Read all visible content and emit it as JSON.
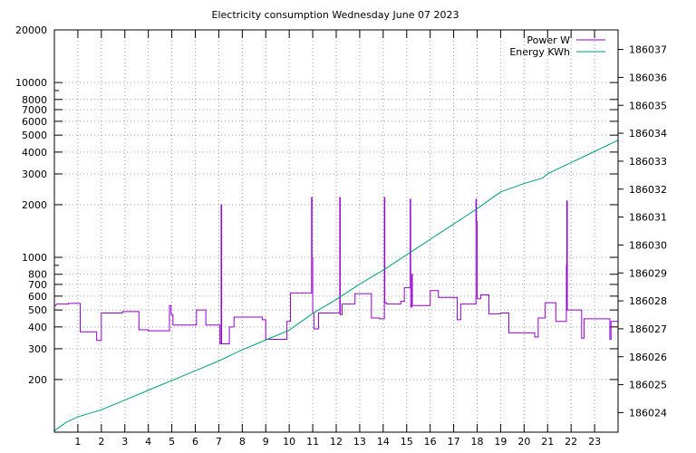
{
  "chart_data": {
    "type": "line",
    "title": "Electricity consumption Wednesday June 07 2023",
    "xlabel": "",
    "ylabel": "",
    "y2label": "",
    "x_ticks": [
      "1",
      "2",
      "3",
      "4",
      "5",
      "6",
      "7",
      "8",
      "9",
      "10",
      "11",
      "12",
      "13",
      "14",
      "15",
      "16",
      "17",
      "18",
      "19",
      "20",
      "21",
      "22",
      "23"
    ],
    "xlim": [
      0,
      24
    ],
    "y_scale": "log",
    "ylim": [
      100,
      20000
    ],
    "y_ticks": [
      {
        "v": 200,
        "t": "200"
      },
      {
        "v": 300,
        "t": "300"
      },
      {
        "v": 400,
        "t": "400"
      },
      {
        "v": 500,
        "t": "500"
      },
      {
        "v": 600,
        "t": "600"
      },
      {
        "v": 700,
        "t": "700"
      },
      {
        "v": 800,
        "t": "800"
      },
      {
        "v": 1000,
        "t": "1000"
      },
      {
        "v": 2000,
        "t": "2000"
      },
      {
        "v": 3000,
        "t": "3000"
      },
      {
        "v": 4000,
        "t": "4000"
      },
      {
        "v": 5000,
        "t": "5000"
      },
      {
        "v": 6000,
        "t": "6000"
      },
      {
        "v": 7000,
        "t": "7000"
      },
      {
        "v": 8000,
        "t": "8000"
      },
      {
        "v": 10000,
        "t": "10000"
      },
      {
        "v": 20000,
        "t": "20000"
      }
    ],
    "y2lim": [
      186023.3,
      186037.7
    ],
    "y2_ticks": [
      "186024",
      "186025",
      "186026",
      "186027",
      "186028",
      "186029",
      "186030",
      "186031",
      "186032",
      "186033",
      "186034",
      "186035",
      "186036",
      "186037"
    ],
    "grid": true,
    "legend_position": "top-right",
    "series": [
      {
        "name": "Power W",
        "color": "#9400d3",
        "axis": "left",
        "points": [
          [
            0.0,
            400
          ],
          [
            0.0,
            530
          ],
          [
            0.05,
            530
          ],
          [
            0.1,
            540
          ],
          [
            0.6,
            540
          ],
          [
            0.6,
            545
          ],
          [
            1.1,
            545
          ],
          [
            1.1,
            375
          ],
          [
            1.8,
            375
          ],
          [
            1.8,
            335
          ],
          [
            2.0,
            335
          ],
          [
            2.0,
            480
          ],
          [
            2.9,
            480
          ],
          [
            2.9,
            490
          ],
          [
            3.6,
            490
          ],
          [
            3.6,
            385
          ],
          [
            4.0,
            385
          ],
          [
            4.0,
            380
          ],
          [
            4.9,
            380
          ],
          [
            4.9,
            530
          ],
          [
            4.97,
            530
          ],
          [
            4.97,
            470
          ],
          [
            5.05,
            470
          ],
          [
            5.05,
            410
          ],
          [
            6.05,
            410
          ],
          [
            6.05,
            500
          ],
          [
            6.45,
            500
          ],
          [
            6.45,
            410
          ],
          [
            7.05,
            410
          ],
          [
            7.05,
            320
          ],
          [
            7.1,
            320
          ],
          [
            7.1,
            2000
          ],
          [
            7.12,
            2000
          ],
          [
            7.12,
            320
          ],
          [
            7.45,
            320
          ],
          [
            7.45,
            400
          ],
          [
            7.65,
            400
          ],
          [
            7.65,
            455
          ],
          [
            8.85,
            455
          ],
          [
            8.85,
            440
          ],
          [
            9.0,
            440
          ],
          [
            9.0,
            340
          ],
          [
            9.9,
            340
          ],
          [
            9.9,
            430
          ],
          [
            10.05,
            430
          ],
          [
            10.05,
            625
          ],
          [
            10.95,
            625
          ],
          [
            10.95,
            2200
          ],
          [
            10.97,
            2200
          ],
          [
            10.97,
            1000
          ],
          [
            11.0,
            1000
          ],
          [
            11.0,
            480
          ],
          [
            11.05,
            480
          ],
          [
            11.05,
            390
          ],
          [
            11.25,
            390
          ],
          [
            11.25,
            480
          ],
          [
            12.15,
            480
          ],
          [
            12.15,
            2200
          ],
          [
            12.17,
            2200
          ],
          [
            12.17,
            470
          ],
          [
            12.25,
            470
          ],
          [
            12.25,
            540
          ],
          [
            12.8,
            540
          ],
          [
            12.8,
            620
          ],
          [
            13.5,
            620
          ],
          [
            13.5,
            450
          ],
          [
            13.85,
            450
          ],
          [
            13.85,
            445
          ],
          [
            14.05,
            445
          ],
          [
            14.05,
            2200
          ],
          [
            14.07,
            2200
          ],
          [
            14.07,
            550
          ],
          [
            14.15,
            550
          ],
          [
            14.15,
            540
          ],
          [
            14.75,
            540
          ],
          [
            14.75,
            560
          ],
          [
            14.9,
            560
          ],
          [
            14.9,
            670
          ],
          [
            15.15,
            670
          ],
          [
            15.15,
            2150
          ],
          [
            15.17,
            2150
          ],
          [
            15.17,
            520
          ],
          [
            15.22,
            520
          ],
          [
            15.22,
            800
          ],
          [
            15.24,
            800
          ],
          [
            15.24,
            530
          ],
          [
            16.0,
            530
          ],
          [
            16.0,
            645
          ],
          [
            16.35,
            645
          ],
          [
            16.35,
            590
          ],
          [
            17.15,
            590
          ],
          [
            17.15,
            440
          ],
          [
            17.3,
            440
          ],
          [
            17.3,
            540
          ],
          [
            17.95,
            540
          ],
          [
            17.95,
            2150
          ],
          [
            17.97,
            2150
          ],
          [
            17.97,
            1600
          ],
          [
            18.0,
            1600
          ],
          [
            18.0,
            580
          ],
          [
            18.15,
            580
          ],
          [
            18.15,
            610
          ],
          [
            18.5,
            610
          ],
          [
            18.5,
            475
          ],
          [
            19.0,
            475
          ],
          [
            19.0,
            480
          ],
          [
            19.35,
            480
          ],
          [
            19.35,
            370
          ],
          [
            20.45,
            370
          ],
          [
            20.45,
            350
          ],
          [
            20.6,
            350
          ],
          [
            20.6,
            450
          ],
          [
            20.9,
            450
          ],
          [
            20.9,
            550
          ],
          [
            21.35,
            550
          ],
          [
            21.35,
            430
          ],
          [
            21.8,
            430
          ],
          [
            21.8,
            900
          ],
          [
            21.82,
            900
          ],
          [
            21.82,
            2100
          ],
          [
            21.84,
            2100
          ],
          [
            21.84,
            500
          ],
          [
            22.45,
            500
          ],
          [
            22.45,
            345
          ],
          [
            22.55,
            345
          ],
          [
            22.55,
            445
          ],
          [
            23.65,
            445
          ],
          [
            23.65,
            340
          ],
          [
            23.7,
            340
          ],
          [
            23.7,
            430
          ],
          [
            24.0,
            430
          ]
        ]
      },
      {
        "name": "Energy KWh",
        "color": "#009e73",
        "axis": "right",
        "points": [
          [
            0.0,
            186023.35
          ],
          [
            0.5,
            186023.65
          ],
          [
            1.0,
            186023.85
          ],
          [
            2.0,
            186024.1
          ],
          [
            3.0,
            186024.45
          ],
          [
            4.0,
            186024.8
          ],
          [
            5.0,
            186025.15
          ],
          [
            6.0,
            186025.5
          ],
          [
            7.0,
            186025.85
          ],
          [
            8.0,
            186026.25
          ],
          [
            9.0,
            186026.6
          ],
          [
            10.0,
            186026.95
          ],
          [
            11.0,
            186027.55
          ],
          [
            12.0,
            186028.05
          ],
          [
            13.0,
            186028.6
          ],
          [
            14.0,
            186029.1
          ],
          [
            15.0,
            186029.65
          ],
          [
            16.0,
            186030.2
          ],
          [
            17.0,
            186030.75
          ],
          [
            18.0,
            186031.3
          ],
          [
            18.5,
            186031.6
          ],
          [
            19.0,
            186031.9
          ],
          [
            19.5,
            186032.05
          ],
          [
            20.0,
            186032.2
          ],
          [
            20.8,
            186032.4
          ],
          [
            21.0,
            186032.55
          ],
          [
            22.0,
            186032.95
          ],
          [
            23.0,
            186033.35
          ],
          [
            24.0,
            186033.75
          ]
        ]
      }
    ]
  }
}
